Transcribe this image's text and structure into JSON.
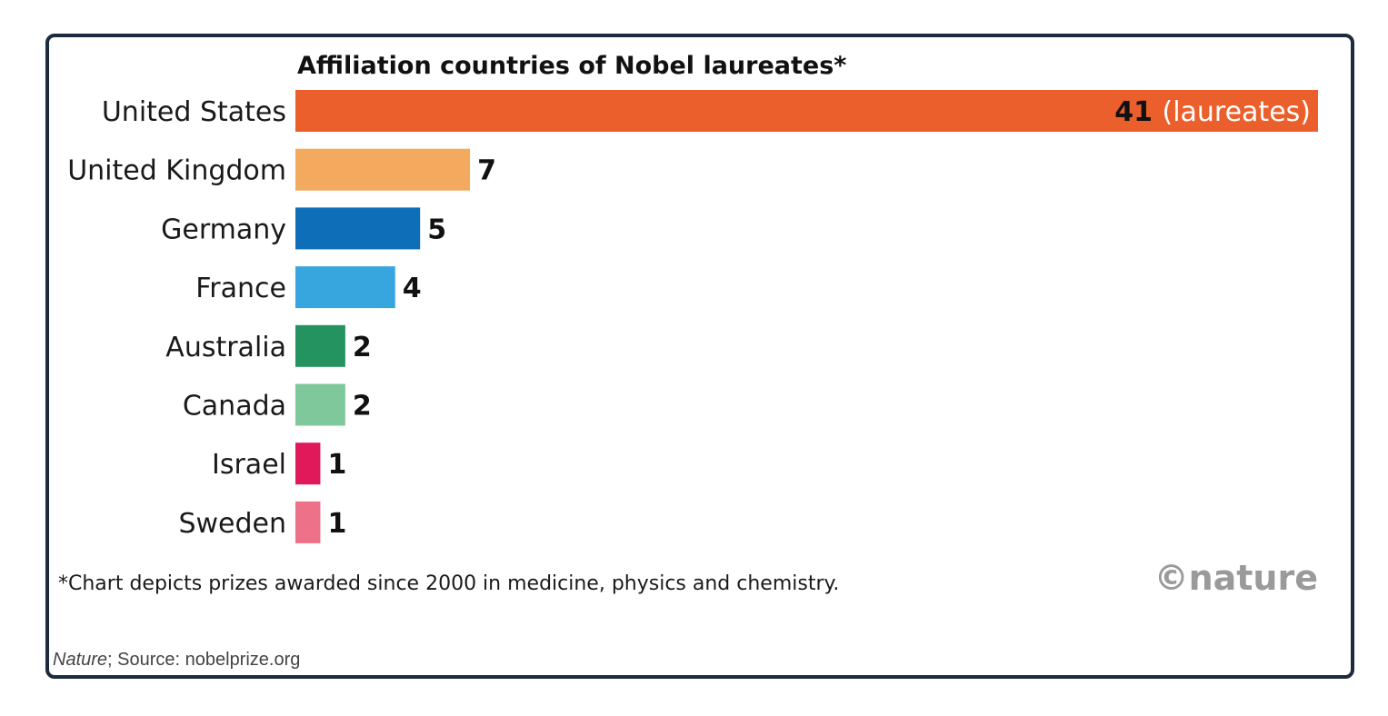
{
  "chart_data": {
    "type": "bar",
    "orientation": "horizontal",
    "title": "Affiliation countries of Nobel laureates*",
    "categories": [
      "United States",
      "United Kingdom",
      "Germany",
      "France",
      "Australia",
      "Canada",
      "Israel",
      "Sweden"
    ],
    "values": [
      41,
      7,
      5,
      4,
      2,
      2,
      1,
      1
    ],
    "colors": [
      "#ea5f2b",
      "#f3a95e",
      "#0e6fb8",
      "#38a6de",
      "#25935f",
      "#7fc89b",
      "#e0195a",
      "#ed7189"
    ],
    "first_value_unit": "(laureates)",
    "xlim": [
      0,
      41
    ],
    "xlabel": "",
    "ylabel": "",
    "footnote": "*Chart depicts prizes awarded since 2000 in medicine, physics and chemistry.",
    "logo": "©nature"
  },
  "credit": {
    "publisher": "Nature",
    "source": "; Source: nobelprize.org"
  }
}
